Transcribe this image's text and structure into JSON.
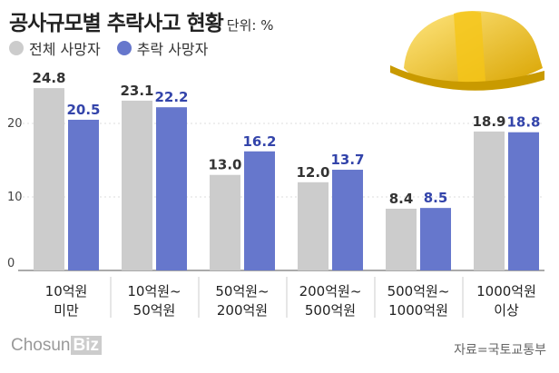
{
  "chart_data": {
    "type": "bar",
    "title": "공사규모별 추락사고 현황",
    "unit": "단위: %",
    "categories": [
      [
        "10억원",
        "미만"
      ],
      [
        "10억원~",
        "50억원"
      ],
      [
        "50억원~",
        "200억원"
      ],
      [
        "200억원~",
        "500억원"
      ],
      [
        "500억원~",
        "1000억원"
      ],
      [
        "1000억원",
        "이상"
      ]
    ],
    "series": [
      {
        "name": "전체 사망자",
        "color": "#cccccc",
        "values": [
          24.8,
          23.1,
          13.0,
          12.0,
          8.4,
          18.9
        ]
      },
      {
        "name": "추락 사망자",
        "color": "#6677cc",
        "values": [
          20.5,
          22.2,
          16.2,
          13.7,
          8.5,
          18.8
        ]
      }
    ],
    "yticks": [
      0,
      10,
      20
    ],
    "ylim": [
      0,
      25
    ],
    "legend": "top-left"
  },
  "source": "자료=국토교통부",
  "logo": {
    "a": "Chosun",
    "b": "Biz"
  }
}
